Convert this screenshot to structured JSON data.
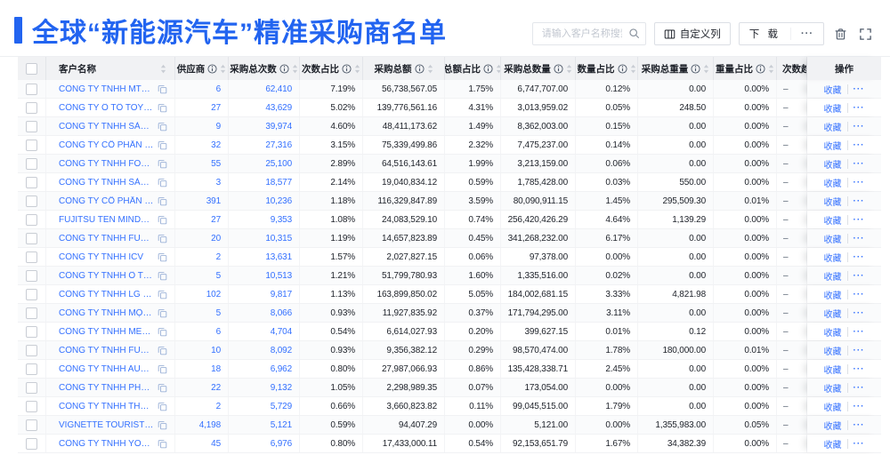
{
  "colors": {
    "accent": "#2264f0",
    "link": "#3370ff",
    "header_bg": "#f1f2f4"
  },
  "header": {
    "title": "全球“新能源汽车”精准采购商名单"
  },
  "toolbar": {
    "search_placeholder": "请输入客户名称搜索",
    "customize_columns_label": "自定义列",
    "download_label": "下 载",
    "more_label": "···",
    "icons": {
      "search": "magnifier",
      "customize": "table-columns",
      "delete": "trash",
      "fullscreen": "expand-corners"
    }
  },
  "table": {
    "icons": {
      "info": "info-circle",
      "sort": "caret-up-down",
      "copy": "copy"
    },
    "actions": {
      "favorite": "收藏",
      "more": "···"
    },
    "columns": [
      {
        "label": "",
        "info": false,
        "sortable": false
      },
      {
        "label": "客户名称",
        "info": false,
        "sortable": true
      },
      {
        "label": "供应商",
        "info": true,
        "sortable": true
      },
      {
        "label": "采购总次数",
        "info": true,
        "sortable": true
      },
      {
        "label": "次数占比",
        "info": true,
        "sortable": true
      },
      {
        "label": "采购总额",
        "info": true,
        "sortable": true
      },
      {
        "label": "总额占比",
        "info": true,
        "sortable": true
      },
      {
        "label": "采购总数量",
        "info": true,
        "sortable": true
      },
      {
        "label": "数量占比",
        "info": true,
        "sortable": true
      },
      {
        "label": "采购总重量",
        "info": true,
        "sortable": true
      },
      {
        "label": "重量占比",
        "info": true,
        "sortable": true
      },
      {
        "label": "次数趋势",
        "info": false,
        "sortable": false
      },
      {
        "label": "操作",
        "info": false,
        "sortable": false
      }
    ],
    "rows": [
      {
        "name": "CÔNG TY TNHH MTV SẢN XUẤ...",
        "suppliers": "6",
        "purchase_count": "62,410",
        "count_pct": "7.19%",
        "total_amount": "56,738,567.05",
        "amount_pct": "1.75%",
        "total_quantity": "6,747,707.00",
        "quantity_pct": "0.12%",
        "total_weight": "0.00",
        "weight_pct": "0.00%",
        "count_trend": "–"
      },
      {
        "name": "CÔNG TY Ô TÔ TOYOTA VIỆT ...",
        "suppliers": "27",
        "purchase_count": "43,629",
        "count_pct": "5.02%",
        "total_amount": "139,776,561.16",
        "amount_pct": "4.31%",
        "total_quantity": "3,013,959.02",
        "quantity_pct": "0.05%",
        "total_weight": "248.50",
        "weight_pct": "0.00%",
        "count_trend": "–"
      },
      {
        "name": "CÔNG TY TNHH SẢN XUẤT VÀ ...",
        "suppliers": "9",
        "purchase_count": "39,974",
        "count_pct": "4.60%",
        "total_amount": "48,411,173.62",
        "amount_pct": "1.49%",
        "total_quantity": "8,362,003.00",
        "quantity_pct": "0.15%",
        "total_weight": "0.00",
        "weight_pct": "0.00%",
        "count_trend": "–"
      },
      {
        "name": "CÔNG TY CỔ PHẦN SẢN XUẤT...",
        "suppliers": "32",
        "purchase_count": "27,316",
        "count_pct": "3.15%",
        "total_amount": "75,339,499.86",
        "amount_pct": "2.32%",
        "total_quantity": "7,475,237.00",
        "quantity_pct": "0.14%",
        "total_weight": "0.00",
        "weight_pct": "0.00%",
        "count_trend": "–"
      },
      {
        "name": "CÔNG TY TNHH FORD VIỆT NAM",
        "suppliers": "55",
        "purchase_count": "25,100",
        "count_pct": "2.89%",
        "total_amount": "64,516,143.61",
        "amount_pct": "1.99%",
        "total_quantity": "3,213,159.00",
        "quantity_pct": "0.06%",
        "total_weight": "0.00",
        "weight_pct": "0.00%",
        "count_trend": "–"
      },
      {
        "name": "CÔNG TY TNHH SẢN XUẤT VÀ ...",
        "suppliers": "3",
        "purchase_count": "18,577",
        "count_pct": "2.14%",
        "total_amount": "19,040,834.12",
        "amount_pct": "0.59%",
        "total_quantity": "1,785,428.00",
        "quantity_pct": "0.03%",
        "total_weight": "550.00",
        "weight_pct": "0.00%",
        "count_trend": "–"
      },
      {
        "name": "CÔNG TY CỔ PHẦN SẢN XUẤT...",
        "suppliers": "391",
        "purchase_count": "10,236",
        "count_pct": "1.18%",
        "total_amount": "116,329,847.89",
        "amount_pct": "3.59%",
        "total_quantity": "80,090,911.15",
        "quantity_pct": "1.45%",
        "total_weight": "295,509.30",
        "weight_pct": "0.01%",
        "count_trend": "–"
      },
      {
        "name": "FUJITSU TEN MINDA INDIA PVT...",
        "suppliers": "27",
        "purchase_count": "9,353",
        "count_pct": "1.08%",
        "total_amount": "24,083,529.10",
        "amount_pct": "0.74%",
        "total_quantity": "256,420,426.29",
        "quantity_pct": "4.64%",
        "total_weight": "1,139.29",
        "weight_pct": "0.00%",
        "count_trend": "–"
      },
      {
        "name": "CÔNG TY TNHH FURUKAWA A...",
        "suppliers": "20",
        "purchase_count": "10,315",
        "count_pct": "1.19%",
        "total_amount": "14,657,823.89",
        "amount_pct": "0.45%",
        "total_quantity": "341,268,232.00",
        "quantity_pct": "6.17%",
        "total_weight": "0.00",
        "weight_pct": "0.00%",
        "count_trend": "–"
      },
      {
        "name": "CÔNG TY TNHH ICV",
        "suppliers": "2",
        "purchase_count": "13,631",
        "count_pct": "1.57%",
        "total_amount": "2,027,827.15",
        "amount_pct": "0.06%",
        "total_quantity": "97,378.00",
        "quantity_pct": "0.00%",
        "total_weight": "0.00",
        "weight_pct": "0.00%",
        "count_trend": "–"
      },
      {
        "name": "CÔNG TY TNHH Ô TÔ MITSUBI...",
        "suppliers": "5",
        "purchase_count": "10,513",
        "count_pct": "1.21%",
        "total_amount": "51,799,780.93",
        "amount_pct": "1.60%",
        "total_quantity": "1,335,516.00",
        "quantity_pct": "0.02%",
        "total_weight": "0.00",
        "weight_pct": "0.00%",
        "count_trend": "–"
      },
      {
        "name": "CÔNG TY TNHH LG ELECTRON...",
        "suppliers": "102",
        "purchase_count": "9,817",
        "count_pct": "1.13%",
        "total_amount": "163,899,850.02",
        "amount_pct": "5.05%",
        "total_quantity": "184,002,681.15",
        "quantity_pct": "3.33%",
        "total_weight": "4,821.98",
        "weight_pct": "0.00%",
        "count_trend": "–"
      },
      {
        "name": "CÔNG TY TNHH MỘT THÀNH V...",
        "suppliers": "5",
        "purchase_count": "8,066",
        "count_pct": "0.93%",
        "total_amount": "11,927,835.92",
        "amount_pct": "0.37%",
        "total_quantity": "171,794,295.00",
        "quantity_pct": "3.11%",
        "total_weight": "0.00",
        "weight_pct": "0.00%",
        "count_trend": "–"
      },
      {
        "name": "CÔNG TY TNHH MERCEDES-B...",
        "suppliers": "6",
        "purchase_count": "4,704",
        "count_pct": "0.54%",
        "total_amount": "6,614,027.93",
        "amount_pct": "0.20%",
        "total_quantity": "399,627.15",
        "quantity_pct": "0.01%",
        "total_weight": "0.12",
        "weight_pct": "0.00%",
        "count_trend": "–"
      },
      {
        "name": "CÔNG TY TNHH FURUKAWA A...",
        "suppliers": "10",
        "purchase_count": "8,092",
        "count_pct": "0.93%",
        "total_amount": "9,356,382.12",
        "amount_pct": "0.29%",
        "total_quantity": "98,570,474.00",
        "quantity_pct": "1.78%",
        "total_weight": "180,000.00",
        "weight_pct": "0.01%",
        "count_trend": "–"
      },
      {
        "name": "CÔNG TY TNHH AUTEL VIỆT N...",
        "suppliers": "18",
        "purchase_count": "6,962",
        "count_pct": "0.80%",
        "total_amount": "27,987,066.93",
        "amount_pct": "0.86%",
        "total_quantity": "135,428,338.71",
        "quantity_pct": "2.45%",
        "total_weight": "0.00",
        "weight_pct": "0.00%",
        "count_trend": "–"
      },
      {
        "name": "CÔNG TY TNHH PHÂN PHỐI T...",
        "suppliers": "22",
        "purchase_count": "9,132",
        "count_pct": "1.05%",
        "total_amount": "2,298,989.35",
        "amount_pct": "0.07%",
        "total_quantity": "173,054.00",
        "quantity_pct": "0.00%",
        "total_weight": "0.00",
        "weight_pct": "0.00%",
        "count_trend": "–"
      },
      {
        "name": "CÔNG TY TNHH THN AUTOPAR...",
        "suppliers": "2",
        "purchase_count": "5,729",
        "count_pct": "0.66%",
        "total_amount": "3,660,823.82",
        "amount_pct": "0.11%",
        "total_quantity": "99,045,515.00",
        "quantity_pct": "1.79%",
        "total_weight": "0.00",
        "weight_pct": "0.00%",
        "count_trend": "–"
      },
      {
        "name": "VIGNETTE TOURISTIQUE G UNI...",
        "suppliers": "4,198",
        "purchase_count": "5,121",
        "count_pct": "0.59%",
        "total_amount": "94,407.29",
        "amount_pct": "0.00%",
        "total_quantity": "5,121.00",
        "quantity_pct": "0.00%",
        "total_weight": "1,355,983.00",
        "weight_pct": "0.05%",
        "count_trend": "–"
      },
      {
        "name": "CÔNG TY TNHH YOKOWO VIỆT...",
        "suppliers": "45",
        "purchase_count": "6,976",
        "count_pct": "0.80%",
        "total_amount": "17,433,000.11",
        "amount_pct": "0.54%",
        "total_quantity": "92,153,651.79",
        "quantity_pct": "1.67%",
        "total_weight": "34,382.39",
        "weight_pct": "0.00%",
        "count_trend": "–"
      }
    ]
  }
}
